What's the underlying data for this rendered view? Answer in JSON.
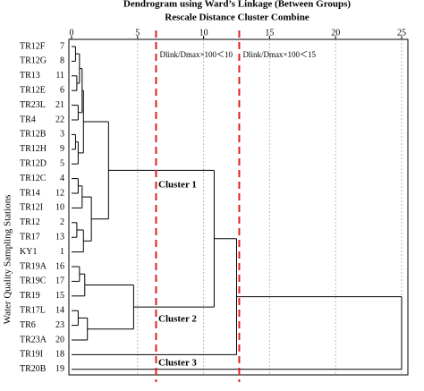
{
  "chart_data": {
    "type": "dendrogram",
    "title": "Dendrogram using Ward’s Linkage (Between Groups)",
    "subtitle": "Rescale Distance Cluster Combine",
    "y_label": "Water Quality Sampling Stations",
    "xlim": [
      0,
      25
    ],
    "xticks": [
      0,
      5,
      10,
      15,
      20,
      25
    ],
    "grid": true,
    "color": "#000000",
    "thresholds": [
      {
        "value": 6.4,
        "label": "Dlink/Dmax×100＜10",
        "color": "#e02020"
      },
      {
        "value": 12.7,
        "label": "Dlink/Dmax×100＜15",
        "color": "#e02020"
      }
    ],
    "annotations": [
      "Cluster 1",
      "Cluster 2",
      "Cluster 3"
    ],
    "tree": {
      "height": 25,
      "children": [
        {
          "height": 12.5,
          "children": [
            {
              "height": 10.8,
              "children": [
                {
                  "height": 2.8,
                  "children": [
                    {
                      "height": 0.9,
                      "children": [
                        {
                          "height": 0.8,
                          "children": [
                            {
                              "height": 0.6,
                              "children": [
                                {
                                  "height": 0.3,
                                  "children": [
                                    {
                                      "label": "TR12F",
                                      "id": 7
                                    },
                                    {
                                      "label": "TR12G",
                                      "id": 8
                                    }
                                  ]
                                },
                                {
                                  "height": 0.4,
                                  "children": [
                                    {
                                      "label": "TR13",
                                      "id": 11
                                    },
                                    {
                                      "label": "TR12E",
                                      "id": 6
                                    }
                                  ]
                                }
                              ]
                            },
                            {
                              "height": 0.5,
                              "children": [
                                {
                                  "label": "TR23L",
                                  "id": 21
                                },
                                {
                                  "label": "TR4",
                                  "id": 22
                                }
                              ]
                            }
                          ]
                        },
                        {
                          "height": 0.5,
                          "children": [
                            {
                              "height": 0.3,
                              "children": [
                                {
                                  "label": "TR12B",
                                  "id": 3
                                },
                                {
                                  "label": "TR12H",
                                  "id": 9
                                }
                              ]
                            },
                            {
                              "label": "TR12D",
                              "id": 5
                            }
                          ]
                        }
                      ]
                    },
                    {
                      "height": 1.5,
                      "children": [
                        {
                          "height": 0.8,
                          "children": [
                            {
                              "height": 0.5,
                              "children": [
                                {
                                  "label": "TR12C",
                                  "id": 4
                                },
                                {
                                  "label": "TR14",
                                  "id": 12
                                }
                              ]
                            },
                            {
                              "label": "TR12I",
                              "id": 10
                            }
                          ]
                        },
                        {
                          "height": 0.9,
                          "children": [
                            {
                              "height": 0.4,
                              "children": [
                                {
                                  "label": "TR12",
                                  "id": 2
                                },
                                {
                                  "label": "TR17",
                                  "id": 13
                                }
                              ]
                            },
                            {
                              "label": "KY1",
                              "id": 1
                            }
                          ]
                        }
                      ]
                    }
                  ]
                },
                {
                  "height": 4.7,
                  "children": [
                    {
                      "height": 1.0,
                      "children": [
                        {
                          "height": 0.6,
                          "children": [
                            {
                              "label": "TR19A",
                              "id": 16
                            },
                            {
                              "label": "TR19C",
                              "id": 17
                            }
                          ]
                        },
                        {
                          "label": "TR19",
                          "id": 15
                        }
                      ]
                    },
                    {
                      "height": 1.2,
                      "children": [
                        {
                          "height": 0.5,
                          "children": [
                            {
                              "label": "TR17L",
                              "id": 14
                            },
                            {
                              "label": "TR6",
                              "id": 23
                            }
                          ]
                        },
                        {
                          "label": "TR23A",
                          "id": 20
                        }
                      ]
                    }
                  ]
                }
              ]
            },
            {
              "label": "TR19I",
              "id": 18
            }
          ]
        },
        {
          "label": "TR20B",
          "id": 19
        }
      ]
    }
  }
}
